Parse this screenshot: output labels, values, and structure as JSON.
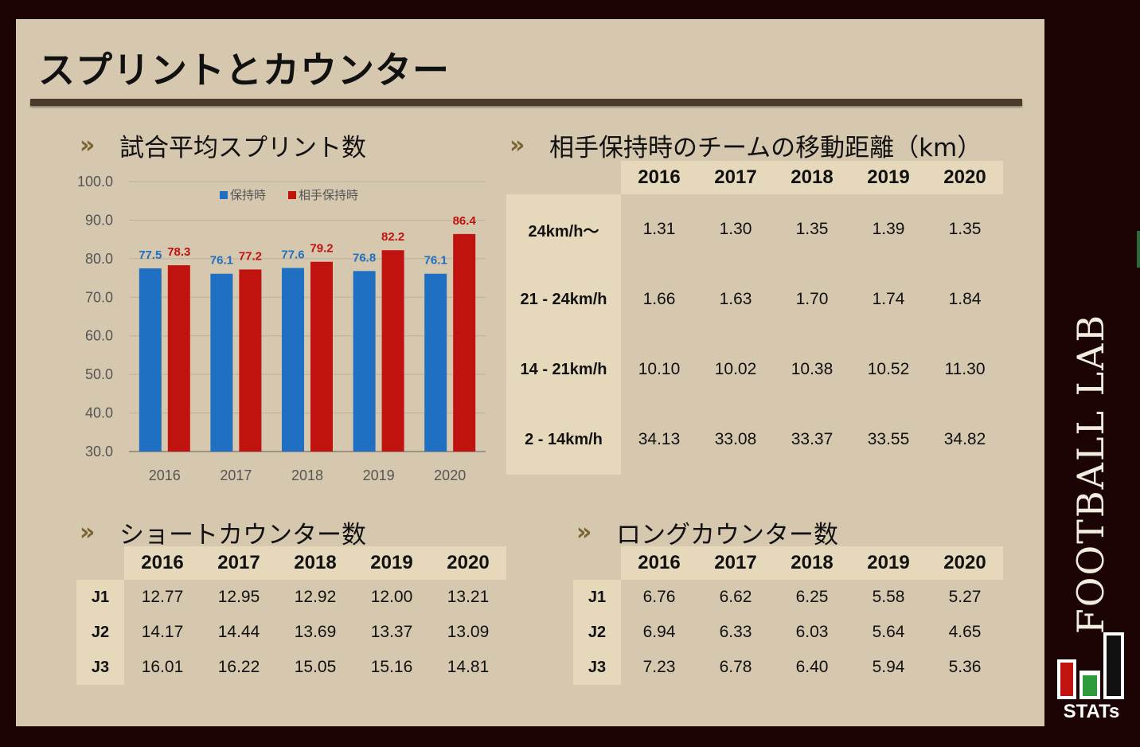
{
  "title": "スプリントとカウンター",
  "chart_data": {
    "type": "bar",
    "title": "試合平均スプリント数",
    "categories": [
      "2016",
      "2017",
      "2018",
      "2019",
      "2020"
    ],
    "series": [
      {
        "name": "保持時",
        "color": "#1f6fc2",
        "values": [
          77.5,
          76.1,
          77.6,
          76.8,
          76.1
        ]
      },
      {
        "name": "相手保持時",
        "color": "#c0120e",
        "values": [
          78.3,
          77.2,
          79.2,
          82.2,
          86.4
        ]
      }
    ],
    "y_ticks": [
      "100.0",
      "90.0",
      "80.0",
      "70.0",
      "60.0",
      "50.0",
      "40.0",
      "30.0"
    ],
    "ylim": [
      30,
      100
    ],
    "grid": true,
    "legend": "top-center"
  },
  "distance": {
    "title": "相手保持時のチームの移動距離（km）",
    "years": [
      "2016",
      "2017",
      "2018",
      "2019",
      "2020"
    ],
    "rows": [
      {
        "label": "24km/h〜",
        "values": [
          "1.31",
          "1.30",
          "1.35",
          "1.39",
          "1.35"
        ]
      },
      {
        "label": "21 - 24km/h",
        "values": [
          "1.66",
          "1.63",
          "1.70",
          "1.74",
          "1.84"
        ]
      },
      {
        "label": "14 - 21km/h",
        "values": [
          "10.10",
          "10.02",
          "10.38",
          "10.52",
          "11.30"
        ]
      },
      {
        "label": "2 - 14km/h",
        "values": [
          "34.13",
          "33.08",
          "33.37",
          "33.55",
          "34.82"
        ]
      }
    ]
  },
  "short_counter": {
    "title": "ショートカウンター数",
    "years": [
      "2016",
      "2017",
      "2018",
      "2019",
      "2020"
    ],
    "rows": [
      {
        "label": "J1",
        "values": [
          "12.77",
          "12.95",
          "12.92",
          "12.00",
          "13.21"
        ]
      },
      {
        "label": "J2",
        "values": [
          "14.17",
          "14.44",
          "13.69",
          "13.37",
          "13.09"
        ]
      },
      {
        "label": "J3",
        "values": [
          "16.01",
          "16.22",
          "15.05",
          "15.16",
          "14.81"
        ]
      }
    ]
  },
  "long_counter": {
    "title": "ロングカウンター数",
    "years": [
      "2016",
      "2017",
      "2018",
      "2019",
      "2020"
    ],
    "rows": [
      {
        "label": "J1",
        "values": [
          "6.76",
          "6.62",
          "6.25",
          "5.58",
          "5.27"
        ]
      },
      {
        "label": "J2",
        "values": [
          "6.94",
          "6.33",
          "6.03",
          "5.64",
          "4.65"
        ]
      },
      {
        "label": "J3",
        "values": [
          "7.23",
          "6.78",
          "6.40",
          "5.94",
          "5.36"
        ]
      }
    ]
  },
  "brand": {
    "name": "FOOTBALL LAB",
    "logo_text": "STATs"
  },
  "chevron_icon": "»"
}
